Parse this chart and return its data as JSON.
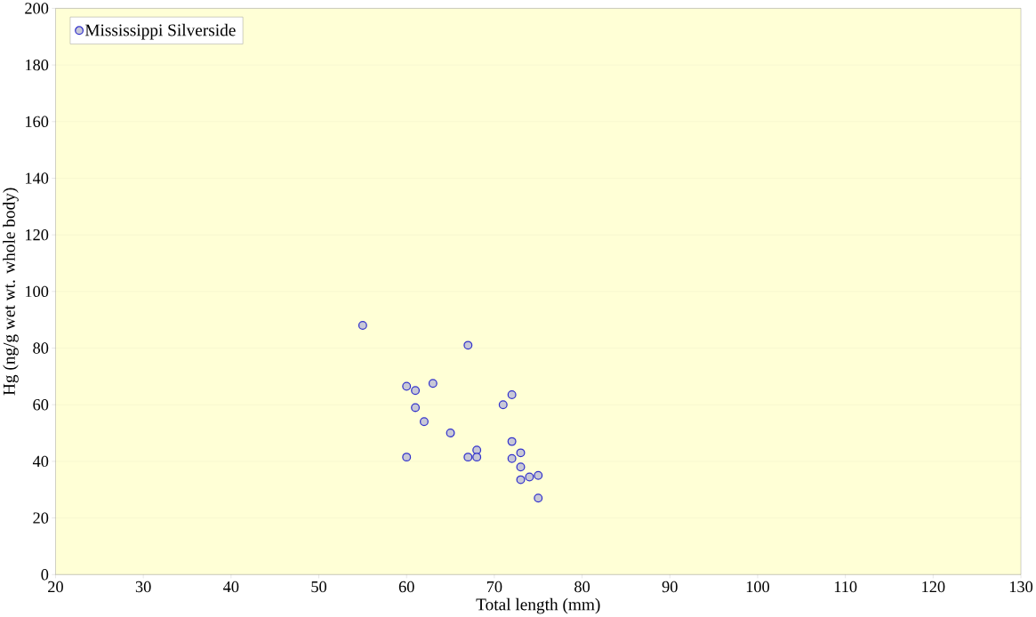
{
  "chart_data": {
    "type": "scatter",
    "xlabel": "Total length (mm)",
    "ylabel": "Hg (ng/g wet wt. whole body)",
    "series": [
      {
        "name": "Mississippi Silverside",
        "color": "#3333cc",
        "x": [
          55,
          67,
          60,
          61,
          63,
          61,
          62,
          65,
          60,
          67,
          68,
          68,
          71,
          72,
          72,
          72,
          73,
          73,
          73,
          74,
          75,
          75
        ],
        "values": [
          88,
          81,
          66.5,
          65,
          67.5,
          59,
          54,
          50,
          41.5,
          41.5,
          44,
          41.5,
          60,
          63.5,
          47,
          41,
          43,
          38,
          33.5,
          34.5,
          35,
          27
        ]
      }
    ],
    "xlim": [
      20,
      130
    ],
    "xticks": [
      20,
      30,
      40,
      50,
      60,
      70,
      80,
      90,
      100,
      110,
      120,
      130
    ],
    "ylim": [
      0,
      200
    ],
    "yticks": [
      0,
      20,
      40,
      60,
      80,
      100,
      120,
      140,
      160,
      180,
      200
    ],
    "grid": "y",
    "legend": "top left",
    "marker": "circle"
  }
}
